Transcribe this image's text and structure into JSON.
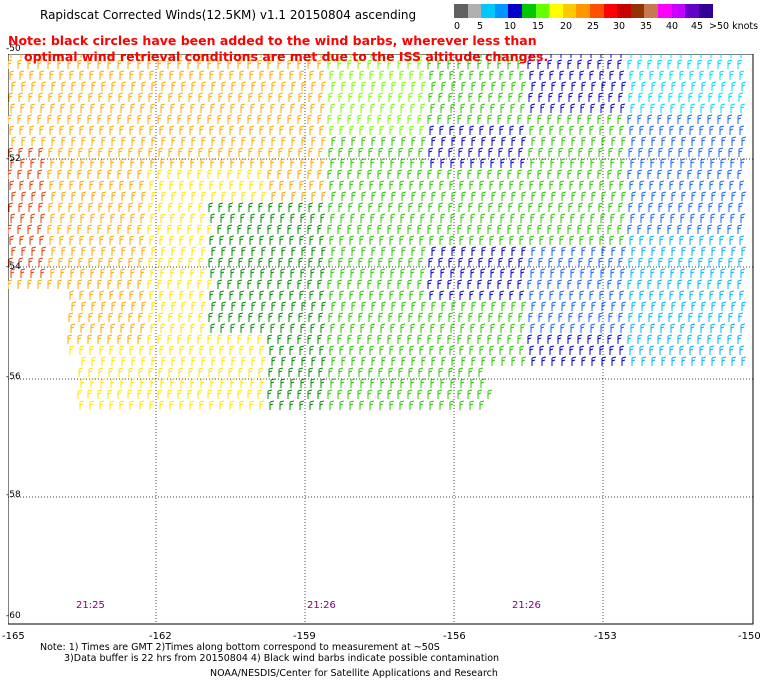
{
  "title": "Rapidscat Corrected Winds(12.5KM) v1.1 20150804 ascending",
  "note_line1": "Note: black circles have been added to the wind barbs, wherever less than",
  "note_line2": "optimal wind retrieval conditions are met due to the ISS altitude changes.",
  "colorbar": {
    "colors": [
      "#606060",
      "#b0b0b0",
      "#00c8ff",
      "#0096ff",
      "#0000c8",
      "#00c800",
      "#64ff00",
      "#ffff00",
      "#ffc800",
      "#ff9600",
      "#ff5000",
      "#ff0000",
      "#c80000",
      "#963200",
      "#c87850",
      "#ff00ff",
      "#c800ff",
      "#6400c8",
      "#320096"
    ],
    "tick_labels": [
      "0",
      "5",
      "10",
      "15",
      "20",
      "25",
      "30",
      "35",
      "40",
      "45",
      ">50 knots"
    ]
  },
  "y_labels": [
    "-50",
    "-52",
    "-54",
    "-56",
    "-58",
    "-60"
  ],
  "x_labels": [
    "-165",
    "-162",
    "-159",
    "-156",
    "-153",
    "-150"
  ],
  "time_labels": [
    "21:25",
    "21:26",
    "21:26"
  ],
  "footnote_line1": "Note: 1) Times are GMT 2)Times along bottom correspond to measurement at ~50S",
  "footnote_line2": "3)Data buffer is 22 hrs from 20150804 4) Black wind barbs indicate possible contamination",
  "credit": "NOAA/NESDIS/Center for Satellite Applications and Research",
  "wind_speed_units": "knots"
}
